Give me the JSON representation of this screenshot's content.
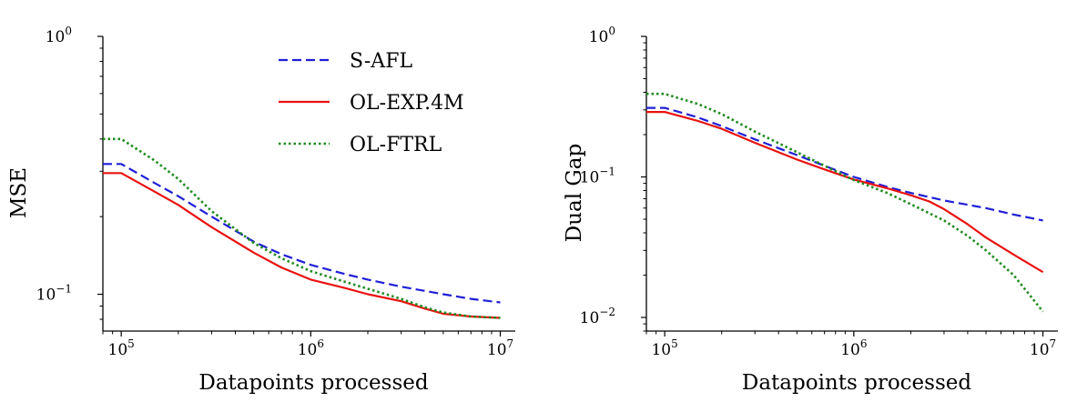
{
  "chart_data": [
    {
      "type": "line",
      "xlabel": "Datapoints processed",
      "ylabel": "MSE",
      "xscale": "log",
      "yscale": "log",
      "xlim": [
        80000,
        12000000
      ],
      "ylim": [
        0.072,
        1.0
      ],
      "xticks": [
        {
          "value": 100000,
          "base": "10",
          "exp": "5"
        },
        {
          "value": 1000000,
          "base": "10",
          "exp": "6"
        },
        {
          "value": 10000000,
          "base": "10",
          "exp": "7"
        }
      ],
      "yticks": [
        {
          "value": 1.0,
          "base": "10",
          "exp": "0"
        },
        {
          "value": 0.1,
          "base": "10",
          "exp": "−1"
        }
      ],
      "grid": false,
      "legend": "top-right",
      "series": [
        {
          "name": "S-AFL",
          "color": "#1f1fd6",
          "dash": "dashed",
          "x": [
            80000,
            100000,
            150000,
            200000,
            300000,
            500000,
            700000,
            1000000,
            1500000,
            2000000,
            3000000,
            5000000,
            7000000,
            10000000
          ],
          "y": [
            0.32,
            0.32,
            0.27,
            0.24,
            0.2,
            0.16,
            0.143,
            0.13,
            0.12,
            0.114,
            0.107,
            0.1,
            0.096,
            0.093
          ]
        },
        {
          "name": "OL-EXP.4M",
          "color": "#e8120f",
          "dash": "solid",
          "x": [
            80000,
            100000,
            150000,
            200000,
            300000,
            500000,
            700000,
            1000000,
            1500000,
            2000000,
            3000000,
            4000000,
            5000000,
            7000000,
            10000000
          ],
          "y": [
            0.295,
            0.295,
            0.25,
            0.222,
            0.182,
            0.145,
            0.127,
            0.114,
            0.106,
            0.1,
            0.094,
            0.088,
            0.084,
            0.082,
            0.081
          ]
        },
        {
          "name": "OL-FTRL",
          "color": "#1f8a1f",
          "dash": "dotted",
          "x": [
            80000,
            100000,
            150000,
            200000,
            300000,
            500000,
            700000,
            1000000,
            1500000,
            2000000,
            3000000,
            4000000,
            5000000,
            7000000,
            10000000
          ],
          "y": [
            0.4,
            0.4,
            0.33,
            0.28,
            0.21,
            0.158,
            0.138,
            0.123,
            0.112,
            0.105,
            0.096,
            0.089,
            0.085,
            0.082,
            0.081
          ]
        }
      ]
    },
    {
      "type": "line",
      "xlabel": "Datapoints processed",
      "ylabel": "Dual Gap",
      "xscale": "log",
      "yscale": "log",
      "xlim": [
        80000,
        12000000
      ],
      "ylim": [
        0.008,
        1.0
      ],
      "xticks": [
        {
          "value": 100000,
          "base": "10",
          "exp": "5"
        },
        {
          "value": 1000000,
          "base": "10",
          "exp": "6"
        },
        {
          "value": 10000000,
          "base": "10",
          "exp": "7"
        }
      ],
      "yticks": [
        {
          "value": 1.0,
          "base": "10",
          "exp": "0"
        },
        {
          "value": 0.1,
          "base": "10",
          "exp": "−1"
        },
        {
          "value": 0.01,
          "base": "10",
          "exp": "−2"
        }
      ],
      "grid": false,
      "series": [
        {
          "name": "S-AFL",
          "color": "#1f1fd6",
          "dash": "dashed",
          "x": [
            80000,
            100000,
            150000,
            200000,
            300000,
            500000,
            700000,
            1000000,
            1500000,
            2000000,
            3000000,
            5000000,
            7000000,
            10000000
          ],
          "y": [
            0.31,
            0.31,
            0.265,
            0.23,
            0.185,
            0.143,
            0.12,
            0.1,
            0.085,
            0.077,
            0.068,
            0.06,
            0.054,
            0.049
          ]
        },
        {
          "name": "OL-EXP.4M",
          "color": "#e8120f",
          "dash": "solid",
          "x": [
            80000,
            100000,
            150000,
            200000,
            300000,
            500000,
            700000,
            1000000,
            1500000,
            2000000,
            2500000,
            3000000,
            4000000,
            5000000,
            7000000,
            10000000
          ],
          "y": [
            0.29,
            0.29,
            0.25,
            0.22,
            0.175,
            0.133,
            0.113,
            0.096,
            0.083,
            0.074,
            0.067,
            0.059,
            0.046,
            0.037,
            0.028,
            0.021
          ]
        },
        {
          "name": "OL-FTRL",
          "color": "#1f8a1f",
          "dash": "dotted",
          "x": [
            80000,
            100000,
            150000,
            200000,
            300000,
            500000,
            700000,
            1000000,
            1500000,
            2000000,
            3000000,
            4000000,
            5000000,
            7000000,
            10000000
          ],
          "y": [
            0.39,
            0.39,
            0.33,
            0.28,
            0.21,
            0.15,
            0.12,
            0.095,
            0.077,
            0.064,
            0.049,
            0.038,
            0.03,
            0.02,
            0.011
          ]
        }
      ]
    }
  ]
}
